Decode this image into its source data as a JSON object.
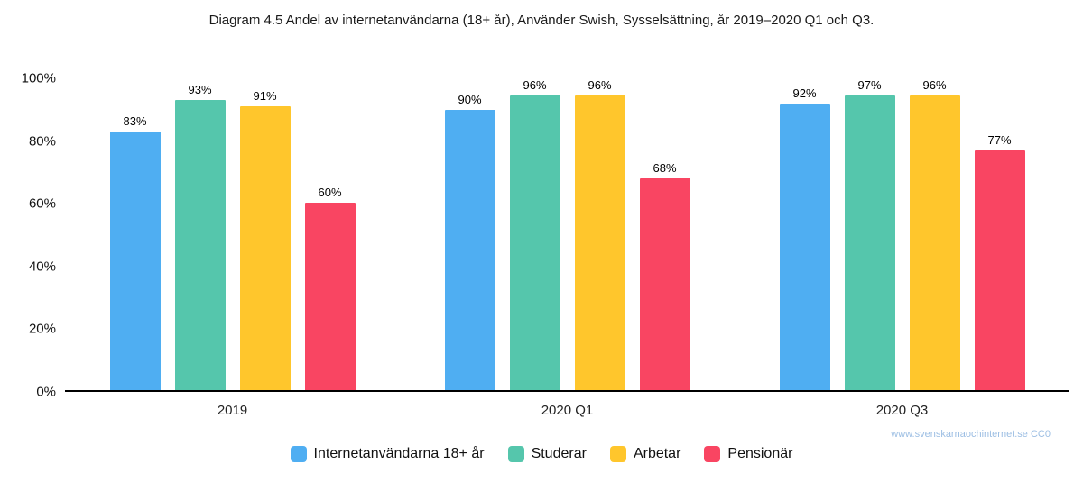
{
  "chart_data": {
    "type": "bar",
    "title": "Diagram 4.5 Andel av internetanvändarna (18+ år), Använder Swish, Sysselsättning, år 2019–2020 Q1 och Q3.",
    "categories": [
      "2019",
      "2020 Q1",
      "2020 Q3"
    ],
    "series": [
      {
        "name": "Internetanvändarna 18+ år",
        "color": "#4FAEF2",
        "values": [
          83,
          90,
          92
        ]
      },
      {
        "name": "Studerar",
        "color": "#55C6AC",
        "values": [
          93,
          96,
          97
        ]
      },
      {
        "name": "Arbetar",
        "color": "#FFC62C",
        "values": [
          91,
          96,
          96
        ]
      },
      {
        "name": "Pensionär",
        "color": "#F94562",
        "values": [
          60,
          68,
          77
        ]
      }
    ],
    "ylim": [
      0,
      100
    ],
    "yticks": [
      0,
      20,
      40,
      60,
      80,
      100
    ],
    "ytick_format": "{v}%",
    "value_label_format": "{v}%",
    "grid": false,
    "legend_position": "bottom"
  },
  "footer": {
    "watermark": "www.svenskarnaochinternet.se CC0",
    "watermark_color": "#9CBEE3"
  }
}
